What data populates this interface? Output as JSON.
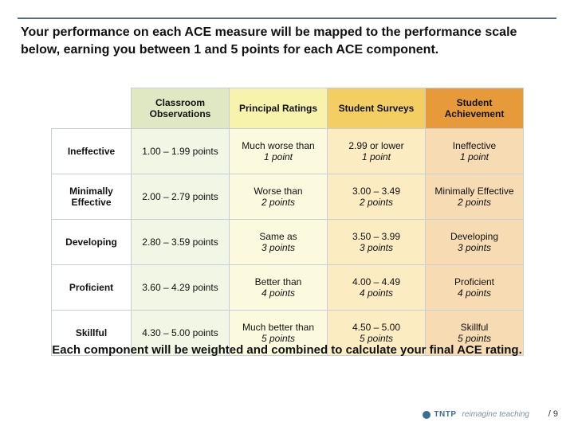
{
  "title": "Your performance on each ACE measure will be mapped to the performance scale below, earning you between 1 and 5 points for each ACE component.",
  "columns": [
    {
      "label": "Classroom Observations",
      "header_bg": "#dfe7c3",
      "cell_bg": "#f2f6e4"
    },
    {
      "label": "Principal Ratings",
      "header_bg": "#f7f2ac",
      "cell_bg": "#fcfade"
    },
    {
      "label": "Student Surveys",
      "header_bg": "#f3cf63",
      "cell_bg": "#fbecc2"
    },
    {
      "label": "Student Achievement",
      "header_bg": "#e79a3a",
      "cell_bg": "#f7dcb3"
    }
  ],
  "rows": [
    {
      "label": "Ineffective",
      "cells": [
        {
          "line1": "1.00 – 1.99 points",
          "line2": ""
        },
        {
          "line1": "Much worse than",
          "line2": "1 point"
        },
        {
          "line1": "2.99 or lower",
          "line2": "1 point"
        },
        {
          "line1": "Ineffective",
          "line2": "1 point"
        }
      ]
    },
    {
      "label": "Minimally Effective",
      "cells": [
        {
          "line1": "2.00 – 2.79 points",
          "line2": ""
        },
        {
          "line1": "Worse than",
          "line2": "2 points"
        },
        {
          "line1": "3.00 – 3.49",
          "line2": "2 points"
        },
        {
          "line1": "Minimally Effective",
          "line2": "2 points"
        }
      ]
    },
    {
      "label": "Developing",
      "cells": [
        {
          "line1": "2.80 – 3.59 points",
          "line2": ""
        },
        {
          "line1": "Same as",
          "line2": "3 points"
        },
        {
          "line1": "3.50 – 3.99",
          "line2": "3 points"
        },
        {
          "line1": "Developing",
          "line2": "3 points"
        }
      ]
    },
    {
      "label": "Proficient",
      "cells": [
        {
          "line1": "3.60 – 4.29 points",
          "line2": ""
        },
        {
          "line1": "Better than",
          "line2": "4 points"
        },
        {
          "line1": "4.00 – 4.49",
          "line2": "4 points"
        },
        {
          "line1": "Proficient",
          "line2": "4 points"
        }
      ]
    },
    {
      "label": "Skillful",
      "cells": [
        {
          "line1": "4.30 – 5.00 points",
          "line2": ""
        },
        {
          "line1": "Much better than",
          "line2": "5 points"
        },
        {
          "line1": "4.50 – 5.00",
          "line2": "5 points"
        },
        {
          "line1": "Skillful",
          "line2": "5 points"
        }
      ]
    }
  ],
  "footer": "Each component will be weighted and combined to calculate your final ACE rating.",
  "brand": {
    "name": "TNTP",
    "tagline": "reimagine teaching"
  },
  "page": "/ 9"
}
